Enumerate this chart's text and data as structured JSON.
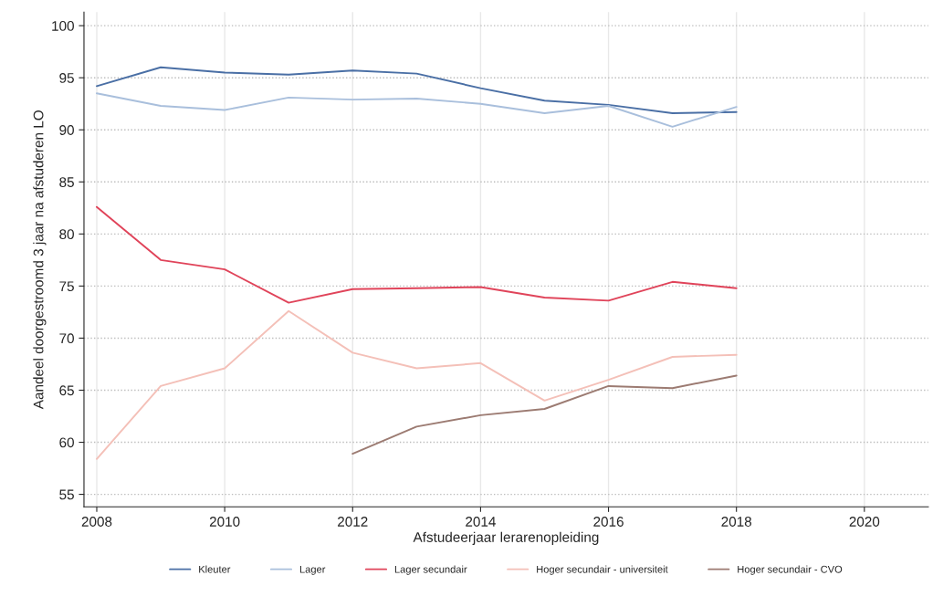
{
  "chart_data": {
    "type": "line",
    "xlabel": "Afstudeerjaar lerarenopleiding",
    "ylabel": "Aandeel doorgestroomd 3 jaar na afstuderen LO",
    "x": [
      2008,
      2009,
      2010,
      2011,
      2012,
      2013,
      2014,
      2015,
      2016,
      2017,
      2018
    ],
    "series": [
      {
        "name": "Kleuter",
        "color": "#4a6fa5",
        "values": [
          94.2,
          96.0,
          95.5,
          95.3,
          95.7,
          95.4,
          94.0,
          92.8,
          92.4,
          91.6,
          91.7
        ]
      },
      {
        "name": "Lager",
        "color": "#a9bfdc",
        "values": [
          93.5,
          92.3,
          91.9,
          93.1,
          92.9,
          93.0,
          92.5,
          91.6,
          92.3,
          90.3,
          92.2
        ]
      },
      {
        "name": "Lager secundair",
        "color": "#e0445a",
        "values": [
          82.6,
          77.5,
          76.6,
          73.4,
          74.7,
          74.8,
          74.9,
          73.9,
          73.6,
          75.4,
          74.8
        ]
      },
      {
        "name": "Hoger secundair - universiteit",
        "color": "#f4c0b8",
        "values": [
          58.4,
          65.4,
          67.1,
          72.6,
          68.6,
          67.1,
          67.6,
          64.0,
          66.0,
          68.2,
          68.4
        ]
      },
      {
        "name": "Hoger secundair - CVO",
        "color": "#9c7b72",
        "values": [
          null,
          null,
          null,
          null,
          58.9,
          61.5,
          62.6,
          63.2,
          65.4,
          65.2,
          66.4
        ]
      }
    ],
    "xlim": [
      2007.8,
      2021
    ],
    "ylim": [
      53.8,
      101.3
    ],
    "xticks": [
      2008,
      2010,
      2012,
      2014,
      2016,
      2018,
      2020
    ],
    "yticks": [
      55,
      60,
      65,
      70,
      75,
      80,
      85,
      90,
      95,
      100
    ],
    "grid": true,
    "legend": "bottom",
    "marker": "none",
    "line_style": "solid"
  }
}
